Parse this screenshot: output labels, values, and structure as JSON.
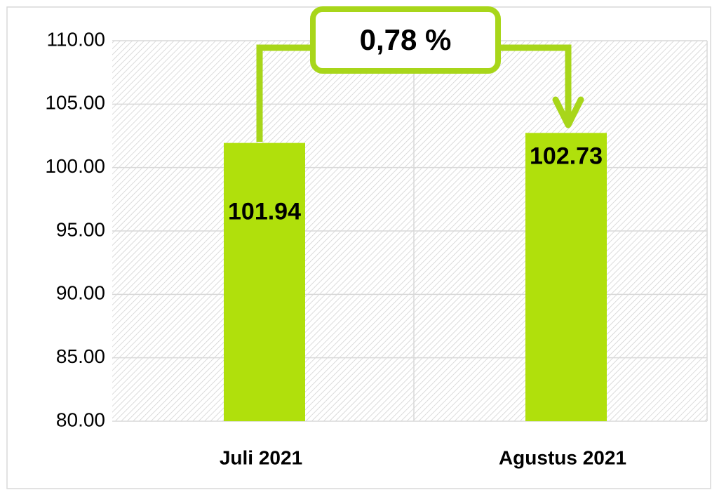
{
  "chart_data": {
    "type": "bar",
    "categories": [
      "Juli 2021",
      "Agustus 2021"
    ],
    "values": [
      101.94,
      102.73
    ],
    "color": "#b0e00c",
    "annotation": "0,78 %",
    "ylim": [
      80,
      110
    ],
    "yticks": [
      {
        "value": 80,
        "label": "80.00"
      },
      {
        "value": 85,
        "label": "85.00"
      },
      {
        "value": 90,
        "label": "90.00"
      },
      {
        "value": 95,
        "label": "95.00"
      },
      {
        "value": 100,
        "label": "100.00"
      },
      {
        "value": 105,
        "label": "105.00"
      },
      {
        "value": 110,
        "label": "110.00"
      }
    ],
    "grid": true
  }
}
